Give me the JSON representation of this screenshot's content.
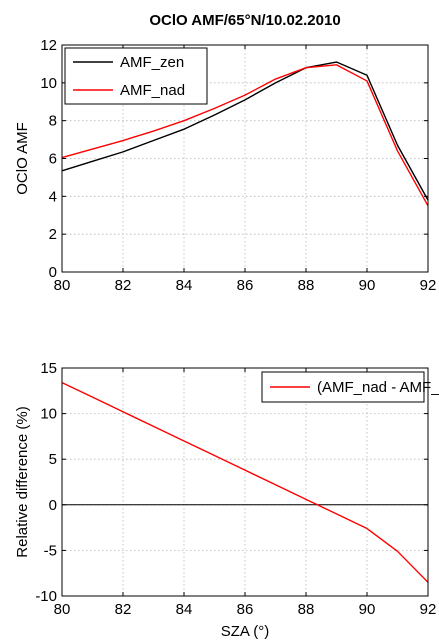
{
  "chart_data": [
    {
      "type": "line",
      "title": "OClO AMF/65°N/10.02.2010",
      "xlabel": "",
      "ylabel": "OClO AMF",
      "xlim": [
        80,
        92
      ],
      "ylim": [
        0,
        12
      ],
      "xticks": [
        80,
        82,
        84,
        86,
        88,
        90,
        92
      ],
      "yticks": [
        0,
        2,
        4,
        6,
        8,
        10,
        12
      ],
      "grid": true,
      "legend_position": "top-left",
      "series": [
        {
          "name": "AMF_zen",
          "color": "#000000",
          "x": [
            80,
            81,
            82,
            83,
            84,
            85,
            86,
            87,
            88,
            89,
            90,
            91,
            92
          ],
          "y": [
            5.35,
            5.85,
            6.35,
            6.95,
            7.55,
            8.3,
            9.1,
            10.0,
            10.8,
            11.1,
            10.4,
            6.7,
            3.8
          ]
        },
        {
          "name": "AMF_nad",
          "color": "#ff0000",
          "x": [
            80,
            81,
            82,
            83,
            84,
            85,
            86,
            87,
            88,
            89,
            90,
            91,
            92
          ],
          "y": [
            6.05,
            6.5,
            6.95,
            7.45,
            8.0,
            8.65,
            9.35,
            10.2,
            10.8,
            10.95,
            10.1,
            6.4,
            3.5
          ]
        }
      ]
    },
    {
      "type": "line",
      "title": "",
      "xlabel": "SZA (°)",
      "ylabel": "Relative difference (%)",
      "xlim": [
        80,
        92
      ],
      "ylim": [
        -10,
        15
      ],
      "xticks": [
        80,
        82,
        84,
        86,
        88,
        90,
        92
      ],
      "yticks": [
        -10,
        -5,
        0,
        5,
        10,
        15
      ],
      "grid": true,
      "zero_line": true,
      "legend_position": "top-right",
      "series": [
        {
          "name": "(AMF_nad - AMF_zen) / AMF_zen",
          "color": "#ff0000",
          "x": [
            80,
            81,
            82,
            83,
            84,
            85,
            86,
            87,
            88,
            89,
            90,
            91,
            92
          ],
          "y": [
            13.4,
            11.8,
            10.2,
            8.6,
            7.0,
            5.4,
            3.8,
            2.2,
            0.6,
            -1.0,
            -2.6,
            -5.1,
            -8.5
          ]
        }
      ]
    }
  ]
}
